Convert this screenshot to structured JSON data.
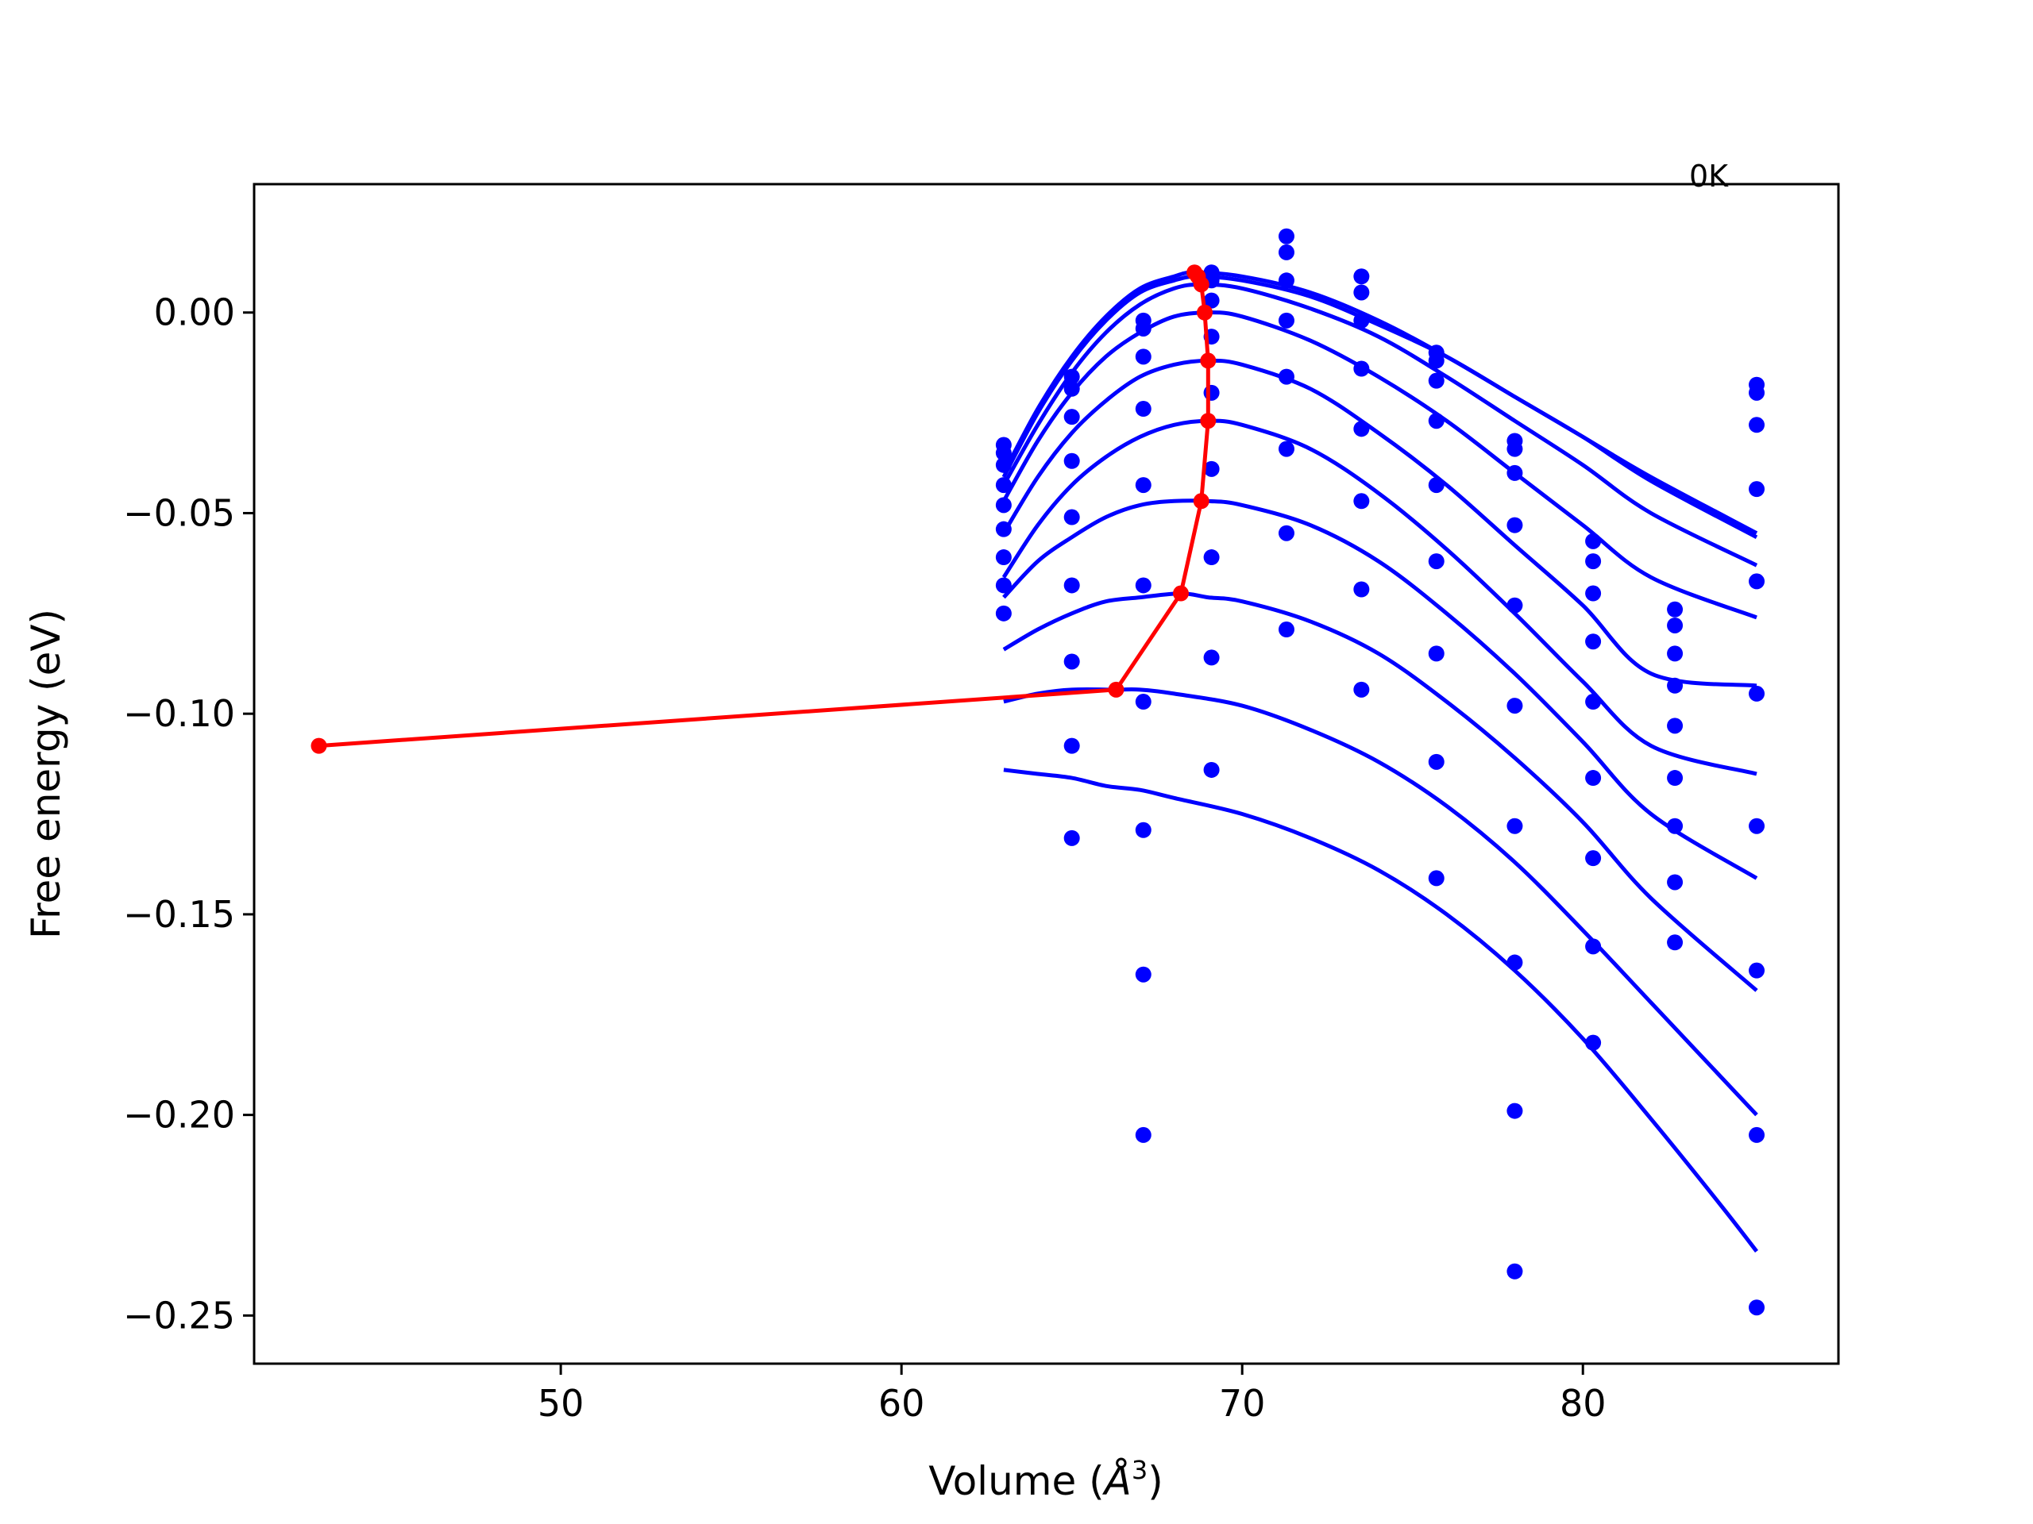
{
  "chart_data": {
    "type": "scatter",
    "title": "",
    "xlabel_text": "Volume (",
    "xlabel_symbol": "Å",
    "xlabel_exp": "3",
    "xlabel_close": ")",
    "ylabel": "Free energy (eV)",
    "xlim": [
      41,
      87.5
    ],
    "ylim": [
      -0.262,
      0.032
    ],
    "xticks": [
      50,
      60,
      70,
      80
    ],
    "xtick_labels": [
      "50",
      "60",
      "70",
      "80"
    ],
    "yticks": [
      0.0,
      -0.05,
      -0.1,
      -0.15,
      -0.2,
      -0.25
    ],
    "ytick_labels": [
      "0.00",
      "−0.05",
      "−0.10",
      "−0.15",
      "−0.20",
      "−0.25"
    ],
    "annotation": "0K",
    "grid": false,
    "legend": "none",
    "colors": {
      "data": "#0000ff",
      "curves": "#0000ff",
      "minimum_path": "#ff0000"
    },
    "data_points": [
      {
        "x": 63.0,
        "y": -0.033
      },
      {
        "x": 63.0,
        "y": -0.035
      },
      {
        "x": 63.0,
        "y": -0.038
      },
      {
        "x": 63.0,
        "y": -0.043
      },
      {
        "x": 63.0,
        "y": -0.048
      },
      {
        "x": 63.0,
        "y": -0.054
      },
      {
        "x": 63.0,
        "y": -0.061
      },
      {
        "x": 63.0,
        "y": -0.068
      },
      {
        "x": 63.0,
        "y": -0.075
      },
      {
        "x": 65.0,
        "y": -0.016
      },
      {
        "x": 65.0,
        "y": -0.019
      },
      {
        "x": 65.0,
        "y": -0.026
      },
      {
        "x": 65.0,
        "y": -0.037
      },
      {
        "x": 65.0,
        "y": -0.051
      },
      {
        "x": 65.0,
        "y": -0.068
      },
      {
        "x": 65.0,
        "y": -0.087
      },
      {
        "x": 65.0,
        "y": -0.108
      },
      {
        "x": 65.0,
        "y": -0.131
      },
      {
        "x": 67.1,
        "y": -0.002
      },
      {
        "x": 67.1,
        "y": -0.004
      },
      {
        "x": 67.1,
        "y": -0.011
      },
      {
        "x": 67.1,
        "y": -0.024
      },
      {
        "x": 67.1,
        "y": -0.043
      },
      {
        "x": 67.1,
        "y": -0.068
      },
      {
        "x": 67.1,
        "y": -0.097
      },
      {
        "x": 67.1,
        "y": -0.129
      },
      {
        "x": 67.1,
        "y": -0.165
      },
      {
        "x": 67.1,
        "y": -0.205
      },
      {
        "x": 69.1,
        "y": 0.01
      },
      {
        "x": 69.1,
        "y": 0.008
      },
      {
        "x": 69.1,
        "y": 0.003
      },
      {
        "x": 69.1,
        "y": -0.006
      },
      {
        "x": 69.1,
        "y": -0.02
      },
      {
        "x": 69.1,
        "y": -0.039
      },
      {
        "x": 69.1,
        "y": -0.061
      },
      {
        "x": 69.1,
        "y": -0.086
      },
      {
        "x": 69.1,
        "y": -0.114
      },
      {
        "x": 71.3,
        "y": 0.019
      },
      {
        "x": 71.3,
        "y": 0.015
      },
      {
        "x": 71.3,
        "y": 0.008
      },
      {
        "x": 71.3,
        "y": -0.002
      },
      {
        "x": 71.3,
        "y": -0.016
      },
      {
        "x": 71.3,
        "y": -0.034
      },
      {
        "x": 71.3,
        "y": -0.055
      },
      {
        "x": 71.3,
        "y": -0.079
      },
      {
        "x": 73.5,
        "y": 0.009
      },
      {
        "x": 73.5,
        "y": 0.005
      },
      {
        "x": 73.5,
        "y": -0.002
      },
      {
        "x": 73.5,
        "y": -0.014
      },
      {
        "x": 73.5,
        "y": -0.029
      },
      {
        "x": 73.5,
        "y": -0.047
      },
      {
        "x": 73.5,
        "y": -0.069
      },
      {
        "x": 73.5,
        "y": -0.094
      },
      {
        "x": 75.7,
        "y": -0.01
      },
      {
        "x": 75.7,
        "y": -0.012
      },
      {
        "x": 75.7,
        "y": -0.017
      },
      {
        "x": 75.7,
        "y": -0.027
      },
      {
        "x": 75.7,
        "y": -0.043
      },
      {
        "x": 75.7,
        "y": -0.062
      },
      {
        "x": 75.7,
        "y": -0.085
      },
      {
        "x": 75.7,
        "y": -0.112
      },
      {
        "x": 75.7,
        "y": -0.141
      },
      {
        "x": 78.0,
        "y": -0.032
      },
      {
        "x": 78.0,
        "y": -0.034
      },
      {
        "x": 78.0,
        "y": -0.04
      },
      {
        "x": 78.0,
        "y": -0.053
      },
      {
        "x": 78.0,
        "y": -0.073
      },
      {
        "x": 78.0,
        "y": -0.098
      },
      {
        "x": 78.0,
        "y": -0.128
      },
      {
        "x": 78.0,
        "y": -0.162
      },
      {
        "x": 78.0,
        "y": -0.199
      },
      {
        "x": 78.0,
        "y": -0.239
      },
      {
        "x": 80.3,
        "y": -0.057
      },
      {
        "x": 80.3,
        "y": -0.062
      },
      {
        "x": 80.3,
        "y": -0.07
      },
      {
        "x": 80.3,
        "y": -0.082
      },
      {
        "x": 80.3,
        "y": -0.097
      },
      {
        "x": 80.3,
        "y": -0.116
      },
      {
        "x": 80.3,
        "y": -0.136
      },
      {
        "x": 80.3,
        "y": -0.158
      },
      {
        "x": 80.3,
        "y": -0.182
      },
      {
        "x": 82.7,
        "y": -0.074
      },
      {
        "x": 82.7,
        "y": -0.078
      },
      {
        "x": 82.7,
        "y": -0.085
      },
      {
        "x": 82.7,
        "y": -0.093
      },
      {
        "x": 82.7,
        "y": -0.103
      },
      {
        "x": 82.7,
        "y": -0.116
      },
      {
        "x": 82.7,
        "y": -0.128
      },
      {
        "x": 82.7,
        "y": -0.142
      },
      {
        "x": 82.7,
        "y": -0.157
      },
      {
        "x": 85.1,
        "y": -0.018
      },
      {
        "x": 85.1,
        "y": -0.02
      },
      {
        "x": 85.1,
        "y": -0.028
      },
      {
        "x": 85.1,
        "y": -0.044
      },
      {
        "x": 85.1,
        "y": -0.067
      },
      {
        "x": 85.1,
        "y": -0.095
      },
      {
        "x": 85.1,
        "y": -0.128
      },
      {
        "x": 85.1,
        "y": -0.164
      },
      {
        "x": 85.1,
        "y": -0.205
      },
      {
        "x": 85.1,
        "y": -0.248
      }
    ],
    "fit_curves": [
      {
        "points": [
          [
            63.0,
            -0.04
          ],
          [
            64.0,
            -0.024
          ],
          [
            65.0,
            -0.011
          ],
          [
            66.0,
            -0.001
          ],
          [
            67.0,
            0.006
          ],
          [
            68.0,
            0.009
          ],
          [
            68.6,
            0.01
          ],
          [
            70.0,
            0.009
          ],
          [
            72.0,
            0.005
          ],
          [
            74.0,
            -0.002
          ],
          [
            76.0,
            -0.011
          ],
          [
            78.0,
            -0.021
          ],
          [
            80.0,
            -0.031
          ],
          [
            82.0,
            -0.041
          ],
          [
            85.1,
            -0.055
          ]
        ]
      },
      {
        "points": [
          [
            63.0,
            -0.041
          ],
          [
            64.0,
            -0.025
          ],
          [
            65.0,
            -0.012
          ],
          [
            66.0,
            -0.002
          ],
          [
            67.0,
            0.005
          ],
          [
            68.0,
            0.008
          ],
          [
            68.7,
            0.009
          ],
          [
            70.0,
            0.008
          ],
          [
            72.0,
            0.004
          ],
          [
            74.0,
            -0.003
          ],
          [
            76.0,
            -0.011
          ],
          [
            78.0,
            -0.021
          ],
          [
            80.0,
            -0.031
          ],
          [
            82.0,
            -0.042
          ],
          [
            85.1,
            -0.056
          ]
        ]
      },
      {
        "points": [
          [
            63.0,
            -0.043
          ],
          [
            64.0,
            -0.028
          ],
          [
            65.0,
            -0.015
          ],
          [
            66.0,
            -0.005
          ],
          [
            67.0,
            0.002
          ],
          [
            68.0,
            0.006
          ],
          [
            68.8,
            0.007
          ],
          [
            70.0,
            0.006
          ],
          [
            72.0,
            0.001
          ],
          [
            74.0,
            -0.006
          ],
          [
            76.0,
            -0.016
          ],
          [
            78.0,
            -0.027
          ],
          [
            80.0,
            -0.038
          ],
          [
            82.0,
            -0.05
          ],
          [
            85.1,
            -0.063
          ]
        ]
      },
      {
        "points": [
          [
            63.0,
            -0.047
          ],
          [
            64.0,
            -0.032
          ],
          [
            65.0,
            -0.02
          ],
          [
            66.0,
            -0.011
          ],
          [
            67.0,
            -0.005
          ],
          [
            68.0,
            -0.001
          ],
          [
            69.0,
            0.0
          ],
          [
            70.0,
            -0.001
          ],
          [
            72.0,
            -0.007
          ],
          [
            74.0,
            -0.016
          ],
          [
            76.0,
            -0.027
          ],
          [
            78.0,
            -0.04
          ],
          [
            80.0,
            -0.053
          ],
          [
            82.0,
            -0.066
          ],
          [
            85.1,
            -0.076
          ]
        ]
      },
      {
        "points": [
          [
            63.0,
            -0.055
          ],
          [
            64.0,
            -0.041
          ],
          [
            65.0,
            -0.03
          ],
          [
            66.0,
            -0.022
          ],
          [
            67.0,
            -0.016
          ],
          [
            68.0,
            -0.013
          ],
          [
            69.0,
            -0.012
          ],
          [
            70.0,
            -0.013
          ],
          [
            72.0,
            -0.019
          ],
          [
            74.0,
            -0.03
          ],
          [
            76.0,
            -0.043
          ],
          [
            78.0,
            -0.058
          ],
          [
            80.0,
            -0.073
          ],
          [
            82.0,
            -0.09
          ],
          [
            85.1,
            -0.093
          ]
        ]
      },
      {
        "points": [
          [
            63.0,
            -0.066
          ],
          [
            64.0,
            -0.053
          ],
          [
            65.0,
            -0.043
          ],
          [
            66.0,
            -0.036
          ],
          [
            67.0,
            -0.031
          ],
          [
            68.0,
            -0.028
          ],
          [
            69.0,
            -0.027
          ],
          [
            70.0,
            -0.028
          ],
          [
            72.0,
            -0.034
          ],
          [
            74.0,
            -0.045
          ],
          [
            76.0,
            -0.059
          ],
          [
            78.0,
            -0.075
          ],
          [
            80.0,
            -0.092
          ],
          [
            82.0,
            -0.108
          ],
          [
            85.1,
            -0.115
          ]
        ]
      },
      {
        "points": [
          [
            63.0,
            -0.071
          ],
          [
            64.0,
            -0.062
          ],
          [
            65.0,
            -0.056
          ],
          [
            66.0,
            -0.051
          ],
          [
            67.0,
            -0.048
          ],
          [
            68.0,
            -0.047
          ],
          [
            69.0,
            -0.047
          ],
          [
            70.0,
            -0.048
          ],
          [
            72.0,
            -0.053
          ],
          [
            74.0,
            -0.062
          ],
          [
            76.0,
            -0.075
          ],
          [
            78.0,
            -0.09
          ],
          [
            80.0,
            -0.107
          ],
          [
            82.0,
            -0.125
          ],
          [
            85.1,
            -0.141
          ]
        ]
      },
      {
        "points": [
          [
            63.0,
            -0.084
          ],
          [
            64.0,
            -0.079
          ],
          [
            65.0,
            -0.075
          ],
          [
            66.0,
            -0.072
          ],
          [
            67.0,
            -0.071
          ],
          [
            68.2,
            -0.07
          ],
          [
            69.0,
            -0.071
          ],
          [
            70.0,
            -0.072
          ],
          [
            72.0,
            -0.077
          ],
          [
            74.0,
            -0.085
          ],
          [
            76.0,
            -0.097
          ],
          [
            78.0,
            -0.111
          ],
          [
            80.0,
            -0.127
          ],
          [
            82.0,
            -0.146
          ],
          [
            85.1,
            -0.169
          ]
        ]
      },
      {
        "points": [
          [
            63.0,
            -0.097
          ],
          [
            64.0,
            -0.095
          ],
          [
            65.0,
            -0.094
          ],
          [
            66.3,
            -0.094
          ],
          [
            67.0,
            -0.094
          ],
          [
            68.0,
            -0.095
          ],
          [
            70.0,
            -0.098
          ],
          [
            72.0,
            -0.104
          ],
          [
            74.0,
            -0.112
          ],
          [
            76.0,
            -0.123
          ],
          [
            78.0,
            -0.137
          ],
          [
            80.0,
            -0.154
          ],
          [
            82.0,
            -0.172
          ],
          [
            85.1,
            -0.2
          ]
        ]
      },
      {
        "points": [
          [
            63.0,
            -0.114
          ],
          [
            64.0,
            -0.115
          ],
          [
            65.0,
            -0.116
          ],
          [
            66.0,
            -0.118
          ],
          [
            67.0,
            -0.119
          ],
          [
            68.0,
            -0.121
          ],
          [
            70.0,
            -0.125
          ],
          [
            72.0,
            -0.131
          ],
          [
            74.0,
            -0.139
          ],
          [
            76.0,
            -0.15
          ],
          [
            78.0,
            -0.164
          ],
          [
            80.0,
            -0.181
          ],
          [
            82.0,
            -0.201
          ],
          [
            84.0,
            -0.222
          ],
          [
            85.1,
            -0.234
          ]
        ]
      }
    ],
    "minimum_path": [
      {
        "x": 42.9,
        "y": -0.108
      },
      {
        "x": 66.3,
        "y": -0.094
      },
      {
        "x": 68.2,
        "y": -0.07
      },
      {
        "x": 68.8,
        "y": -0.047
      },
      {
        "x": 69.0,
        "y": -0.027
      },
      {
        "x": 69.0,
        "y": -0.012
      },
      {
        "x": 68.9,
        "y": 0.0
      },
      {
        "x": 68.8,
        "y": 0.007
      },
      {
        "x": 68.7,
        "y": 0.009
      },
      {
        "x": 68.6,
        "y": 0.01
      }
    ]
  }
}
